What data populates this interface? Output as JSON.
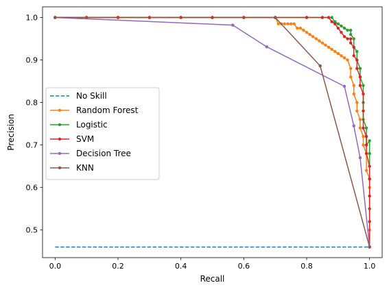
{
  "chart_data": {
    "type": "line",
    "title": "",
    "xlabel": "Recall",
    "ylabel": "Precision",
    "xlim": [
      -0.04,
      1.04
    ],
    "ylim": [
      0.435,
      1.025
    ],
    "xticks": [
      0.0,
      0.2,
      0.4,
      0.6,
      0.8,
      1.0
    ],
    "xtick_labels": [
      "0.0",
      "0.2",
      "0.4",
      "0.6",
      "0.8",
      "1.0"
    ],
    "yticks": [
      0.5,
      0.6,
      0.7,
      0.8,
      0.9,
      1.0
    ],
    "ytick_labels": [
      "0.5",
      "0.6",
      "0.7",
      "0.8",
      "0.9",
      "1.0"
    ],
    "grid": false,
    "legend_position": "center-left",
    "series": [
      {
        "name": "No Skill",
        "color": "#1f77b4",
        "style": "dashed",
        "marker": "none",
        "x": [
          0,
          1
        ],
        "y": [
          0.46,
          0.46
        ]
      },
      {
        "name": "Random Forest",
        "color": "#ff7f0e",
        "style": "solid",
        "marker": "dot",
        "x": [
          0,
          0.1,
          0.2,
          0.3,
          0.4,
          0.5,
          0.6,
          0.7,
          0.71,
          0.72,
          0.73,
          0.74,
          0.75,
          0.76,
          0.77,
          0.78,
          0.79,
          0.8,
          0.81,
          0.82,
          0.83,
          0.84,
          0.85,
          0.86,
          0.87,
          0.88,
          0.89,
          0.9,
          0.91,
          0.92,
          0.93,
          0.94,
          0.94,
          0.95,
          0.95,
          0.96,
          0.96,
          0.97,
          0.97,
          0.98,
          0.98,
          0.99,
          0.99,
          1.0,
          1.0,
          1.0,
          1.0,
          1.0
        ],
        "y": [
          1.0,
          1.0,
          1.0,
          1.0,
          1.0,
          1.0,
          1.0,
          1.0,
          0.985,
          0.985,
          0.985,
          0.985,
          0.985,
          0.985,
          0.975,
          0.975,
          0.97,
          0.965,
          0.96,
          0.955,
          0.95,
          0.945,
          0.94,
          0.935,
          0.93,
          0.925,
          0.92,
          0.915,
          0.91,
          0.905,
          0.9,
          0.88,
          0.86,
          0.84,
          0.82,
          0.8,
          0.78,
          0.76,
          0.74,
          0.72,
          0.7,
          0.68,
          0.64,
          0.62,
          0.6,
          0.55,
          0.5,
          0.46
        ]
      },
      {
        "name": "Logistic",
        "color": "#2ca02c",
        "style": "solid",
        "marker": "dot",
        "x": [
          0,
          0.1,
          0.2,
          0.3,
          0.4,
          0.5,
          0.6,
          0.7,
          0.8,
          0.85,
          0.88,
          0.89,
          0.9,
          0.91,
          0.92,
          0.93,
          0.94,
          0.94,
          0.95,
          0.95,
          0.96,
          0.96,
          0.97,
          0.97,
          0.98,
          0.98,
          0.98,
          0.99,
          0.99,
          0.99,
          1.0,
          1.0,
          1.0,
          1.0,
          1.0
        ],
        "y": [
          1.0,
          1.0,
          1.0,
          1.0,
          1.0,
          1.0,
          1.0,
          1.0,
          1.0,
          1.0,
          1.0,
          0.99,
          0.985,
          0.98,
          0.975,
          0.97,
          0.97,
          0.96,
          0.95,
          0.93,
          0.92,
          0.9,
          0.88,
          0.86,
          0.84,
          0.8,
          0.76,
          0.74,
          0.72,
          0.7,
          0.71,
          0.68,
          0.62,
          0.55,
          0.46
        ]
      },
      {
        "name": "SVM",
        "color": "#d62728",
        "style": "solid",
        "marker": "dot",
        "x": [
          0,
          0.1,
          0.2,
          0.3,
          0.4,
          0.5,
          0.6,
          0.7,
          0.8,
          0.85,
          0.87,
          0.88,
          0.89,
          0.9,
          0.91,
          0.92,
          0.93,
          0.94,
          0.94,
          0.95,
          0.95,
          0.96,
          0.96,
          0.97,
          0.97,
          0.98,
          0.98,
          0.98,
          0.99,
          0.99,
          0.99,
          1.0,
          1.0,
          1.0,
          1.0,
          1.0
        ],
        "y": [
          1.0,
          1.0,
          1.0,
          1.0,
          1.0,
          1.0,
          1.0,
          1.0,
          1.0,
          1.0,
          1.0,
          0.99,
          0.985,
          0.975,
          0.965,
          0.955,
          0.95,
          0.95,
          0.94,
          0.93,
          0.91,
          0.9,
          0.88,
          0.86,
          0.84,
          0.82,
          0.78,
          0.74,
          0.72,
          0.7,
          0.68,
          0.65,
          0.62,
          0.58,
          0.52,
          0.46
        ]
      },
      {
        "name": "Decision Tree",
        "color": "#9467bd",
        "style": "solid",
        "marker": "dot",
        "x": [
          0,
          0.565,
          0.673,
          0.92,
          0.95,
          0.97,
          1.0
        ],
        "y": [
          1.0,
          0.982,
          0.931,
          0.838,
          0.745,
          0.67,
          0.46
        ]
      },
      {
        "name": "KNN",
        "color": "#8c564b",
        "style": "solid",
        "marker": "dot",
        "x": [
          0,
          0.7,
          0.843,
          1.0
        ],
        "y": [
          1.0,
          1.0,
          0.886,
          0.46
        ]
      }
    ]
  }
}
